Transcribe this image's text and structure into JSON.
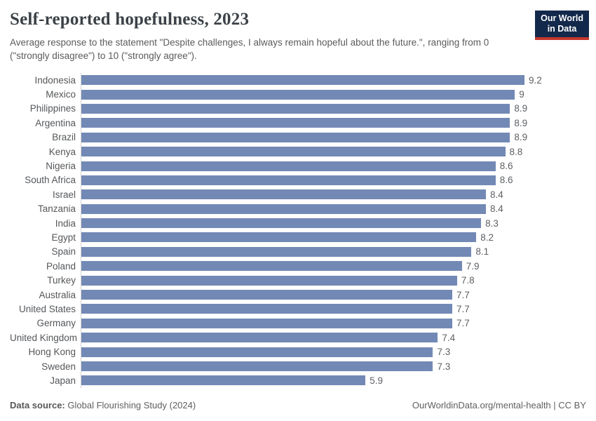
{
  "header": {
    "title": "Self-reported hopefulness, 2023",
    "subtitle": "Average response to the statement \"Despite challenges, I always remain hopeful about the future.\", ranging from 0 (\"strongly disagree\") to 10 (\"strongly agree\").",
    "logo": {
      "line1": "Our World",
      "line2": "in Data",
      "bg_color": "#13294b",
      "accent_color": "#c5362d"
    }
  },
  "chart_data": {
    "type": "bar",
    "orientation": "horizontal",
    "title": "Self-reported hopefulness, 2023",
    "xlabel": "",
    "ylabel": "",
    "xlim": [
      0,
      9.2
    ],
    "grid": false,
    "legend": false,
    "bar_color": "#7389b5",
    "axis_line_color": "#d4d4d4",
    "categories": [
      "Indonesia",
      "Mexico",
      "Philippines",
      "Argentina",
      "Brazil",
      "Kenya",
      "Nigeria",
      "South Africa",
      "Israel",
      "Tanzania",
      "India",
      "Egypt",
      "Spain",
      "Poland",
      "Turkey",
      "Australia",
      "United States",
      "Germany",
      "United Kingdom",
      "Hong Kong",
      "Sweden",
      "Japan"
    ],
    "values": [
      9.2,
      9,
      8.9,
      8.9,
      8.9,
      8.8,
      8.6,
      8.6,
      8.4,
      8.4,
      8.3,
      8.2,
      8.1,
      7.9,
      7.8,
      7.7,
      7.7,
      7.7,
      7.4,
      7.3,
      7.3,
      5.9
    ]
  },
  "footer": {
    "source_label": "Data source:",
    "source_value": "Global Flourishing Study (2024)",
    "credit": "OurWorldinData.org/mental-health | CC BY"
  }
}
